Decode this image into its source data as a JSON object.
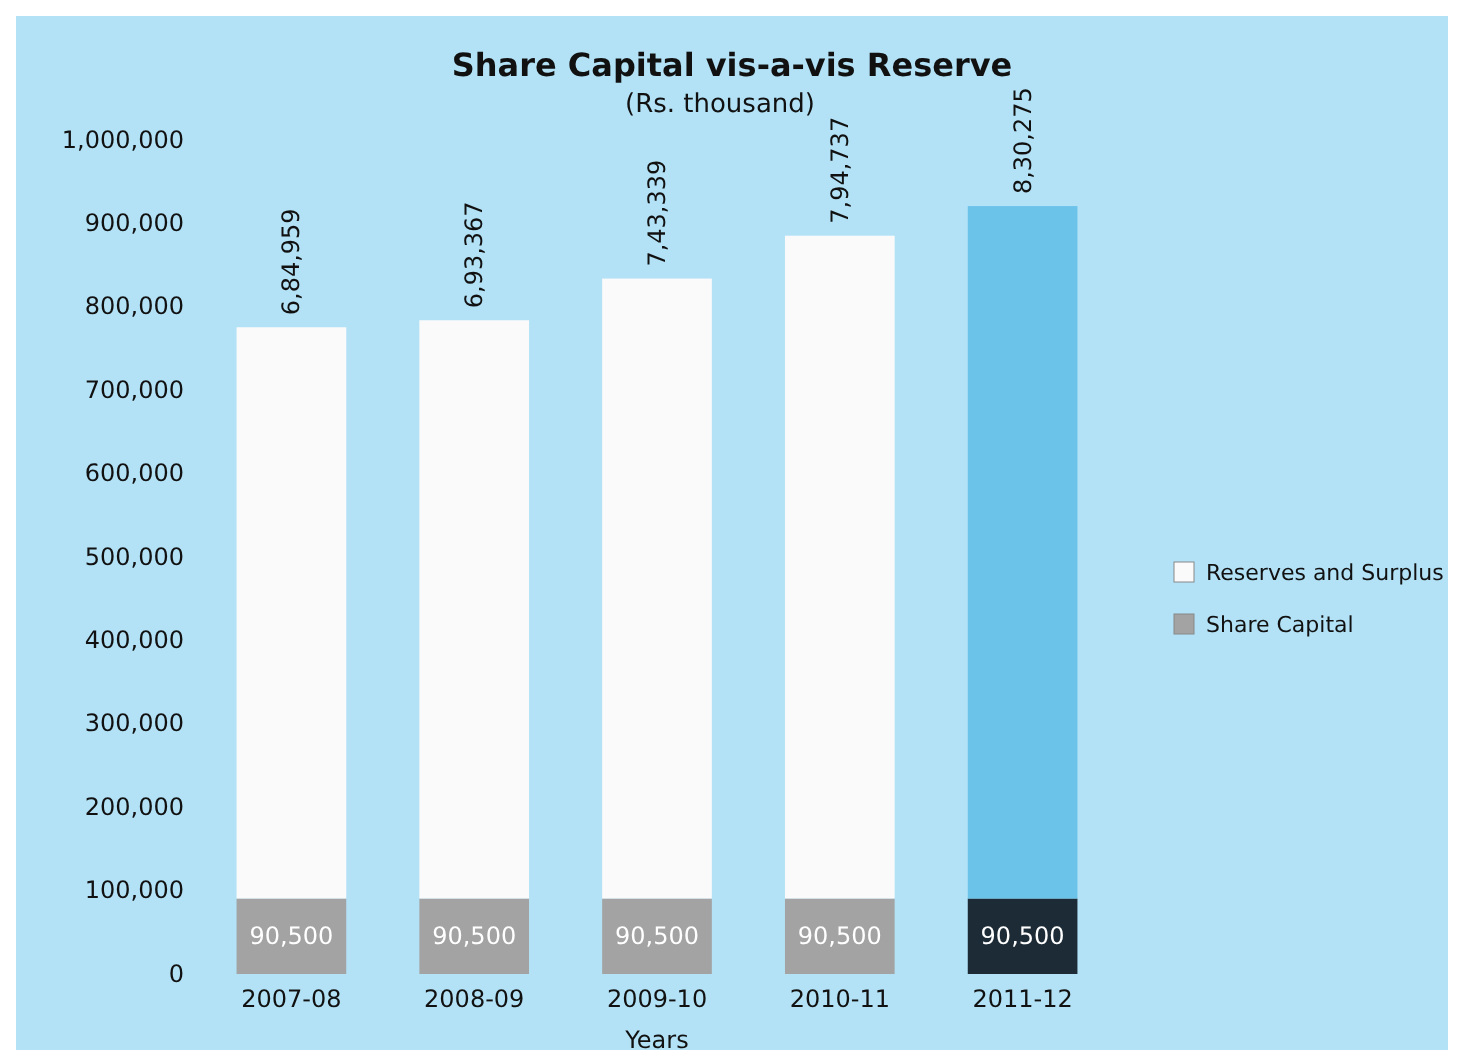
{
  "chart_data": {
    "type": "bar",
    "stacked": true,
    "title": "Share Capital vis-a-vis Reserve",
    "subtitle": "(Rs. thousand)",
    "xlabel": "Years",
    "categories": [
      "2007-08",
      "2008-09",
      "2009-10",
      "2010-11",
      "2011-12"
    ],
    "series": [
      {
        "name": "Share Capital",
        "color": "#a3a3a3",
        "colors": [
          "#a3a3a3",
          "#a3a3a3",
          "#a3a3a3",
          "#a3a3a3",
          "#1c2b36"
        ],
        "values": [
          90500,
          90500,
          90500,
          90500,
          90500
        ],
        "value_labels": [
          "90,500",
          "90,500",
          "90,500",
          "90,500",
          "90,500"
        ]
      },
      {
        "name": "Reserves and Surplus",
        "color": "#fafafa",
        "colors": [
          "#fafafa",
          "#fafafa",
          "#fafafa",
          "#fafafa",
          "#6cc3ea"
        ],
        "values": [
          684959,
          693367,
          743339,
          794737,
          830275
        ],
        "value_labels": [
          "6,84,959",
          "6,93,367",
          "7,43,339",
          "7,94,737",
          "8,30,275"
        ]
      }
    ],
    "ylim": [
      0,
      1000000
    ],
    "yticks": [
      {
        "value": 0,
        "label": "0"
      },
      {
        "value": 100000,
        "label": "100,000"
      },
      {
        "value": 200000,
        "label": "200,000"
      },
      {
        "value": 300000,
        "label": "300,000"
      },
      {
        "value": 400000,
        "label": "400,000"
      },
      {
        "value": 500000,
        "label": "500,000"
      },
      {
        "value": 600000,
        "label": "600,000"
      },
      {
        "value": 700000,
        "label": "700,000"
      },
      {
        "value": 800000,
        "label": "800,000"
      },
      {
        "value": 900000,
        "label": "900,000"
      },
      {
        "value": 1000000,
        "label": "1,000,000"
      }
    ],
    "legend": "right",
    "grid": false
  }
}
